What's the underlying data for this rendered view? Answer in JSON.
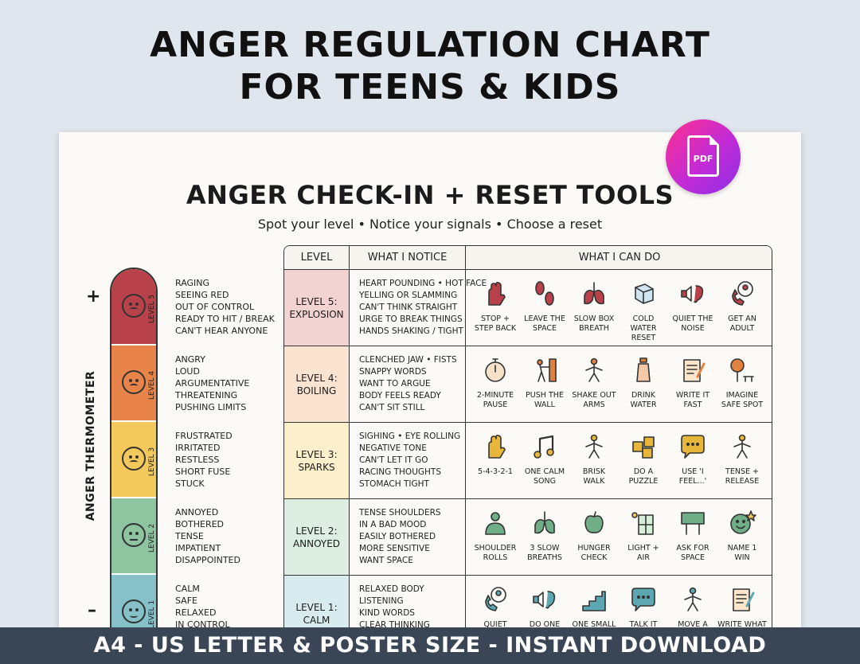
{
  "hero": {
    "line1": "ANGER REGULATION CHART",
    "line2": "FOR TEENS & KIDS"
  },
  "badge": {
    "text": "PDF"
  },
  "sheet": {
    "title": "ANGER CHECK-IN + RESET TOOLS",
    "subtitle": "Spot your level • Notice your signals • Choose a reset"
  },
  "thermometer": {
    "label": "ANGER THERMOMETER",
    "plus": "+",
    "minus": "–",
    "levels": [
      {
        "tag": "LEVEL 5",
        "color": "#b8414a",
        "signals": [
          "RAGING",
          "SEEING RED",
          "OUT OF CONTROL",
          "READY TO HIT / BREAK",
          "CAN'T HEAR ANYONE"
        ]
      },
      {
        "tag": "LEVEL 4",
        "color": "#e8844a",
        "signals": [
          "ANGRY",
          "LOUD",
          "ARGUMENTATIVE",
          "THREATENING",
          "PUSHING LIMITS"
        ]
      },
      {
        "tag": "LEVEL 3",
        "color": "#f2c95a",
        "signals": [
          "FRUSTRATED",
          "IRRITATED",
          "RESTLESS",
          "SHORT FUSE",
          "STUCK"
        ]
      },
      {
        "tag": "LEVEL 2",
        "color": "#8fc4a0",
        "signals": [
          "ANNOYED",
          "BOTHERED",
          "TENSE",
          "IMPATIENT",
          "DISAPPOINTED"
        ]
      },
      {
        "tag": "LEVEL 1",
        "color": "#86c0c9",
        "signals": [
          "CALM",
          "SAFE",
          "RELAXED",
          "IN CONTROL"
        ]
      }
    ]
  },
  "table": {
    "headers": {
      "level": "LEVEL",
      "notice": "WHAT I NOTICE",
      "do": "WHAT I CAN DO"
    },
    "rows": [
      {
        "level": "LEVEL 5:\nEXPLOSION",
        "bg": "#f2d3d2",
        "stripe": "#b8414a",
        "notice": [
          "HEART POUNDING • HOT FACE",
          "YELLING OR SLAMMING",
          "CAN'T THINK STRAIGHT",
          "URGE TO BREAK THINGS",
          "HANDS SHAKING / TIGHT"
        ],
        "tools": [
          {
            "icon": "stop-hand-icon",
            "label": "STOP +\nSTEP BACK"
          },
          {
            "icon": "footprints-icon",
            "label": "LEAVE THE\nSPACE"
          },
          {
            "icon": "lungs-icon",
            "label": "SLOW BOX\nBREATH"
          },
          {
            "icon": "ice-cube-icon",
            "label": "COLD WATER\nRESET"
          },
          {
            "icon": "ear-icon",
            "label": "QUIET THE\nNOISE"
          },
          {
            "icon": "phone-adult-icon",
            "label": "GET AN\nADULT"
          }
        ]
      },
      {
        "level": "LEVEL 4:\nBOILING",
        "bg": "#fbe3d2",
        "stripe": "#e8844a",
        "notice": [
          "CLENCHED JAW • FISTS",
          "SNAPPY WORDS",
          "WANT TO ARGUE",
          "BODY FEELS READY",
          "CAN'T SIT STILL"
        ],
        "tools": [
          {
            "icon": "stopwatch-icon",
            "label": "2-MINUTE\nPAUSE"
          },
          {
            "icon": "push-wall-icon",
            "label": "PUSH THE\nWALL"
          },
          {
            "icon": "shake-arms-icon",
            "label": "SHAKE OUT\nARMS"
          },
          {
            "icon": "water-bottle-icon",
            "label": "DRINK\nWATER"
          },
          {
            "icon": "notepad-icon",
            "label": "WRITE IT\nFAST"
          },
          {
            "icon": "tree-bench-icon",
            "label": "IMAGINE\nSAFE SPOT"
          }
        ]
      },
      {
        "level": "LEVEL 3:\nSPARKS",
        "bg": "#fcefcc",
        "stripe": "#f2c95a",
        "notice": [
          "SIGHING • EYE ROLLING",
          "NEGATIVE TONE",
          "CAN'T LET IT GO",
          "RACING THOUGHTS",
          "STOMACH TIGHT"
        ],
        "tools": [
          {
            "icon": "hand-icon",
            "label": "5-4-3-2-1"
          },
          {
            "icon": "music-note-icon",
            "label": "ONE CALM\nSONG"
          },
          {
            "icon": "walking-icon",
            "label": "BRISK\nWALK"
          },
          {
            "icon": "puzzle-icon",
            "label": "DO A\nPUZZLE"
          },
          {
            "icon": "speech-bubble-icon",
            "label": "USE 'I\nFEEL...'"
          },
          {
            "icon": "flexed-arm-icon",
            "label": "TENSE +\nRELEASE"
          }
        ]
      },
      {
        "level": "LEVEL 2:\nANNOYED",
        "bg": "#dcefe2",
        "stripe": "#8fc4a0",
        "notice": [
          "TENSE SHOULDERS",
          "IN A BAD MOOD",
          "EASILY BOTHERED",
          "MORE SENSITIVE",
          "WANT SPACE"
        ],
        "tools": [
          {
            "icon": "shoulder-roll-icon",
            "label": "SHOULDER\nROLLS"
          },
          {
            "icon": "lungs-breath-icon",
            "label": "3 SLOW\nBREATHS"
          },
          {
            "icon": "apple-icon",
            "label": "HUNGER\nCHECK"
          },
          {
            "icon": "window-sun-icon",
            "label": "LIGHT +\nAIR"
          },
          {
            "icon": "boundaries-sign-icon",
            "label": "ASK FOR\nSPACE"
          },
          {
            "icon": "smiley-star-icon",
            "label": "NAME 1\nWIN"
          }
        ]
      },
      {
        "level": "LEVEL 1:\nCALM",
        "bg": "#d8ecf0",
        "stripe": "#86c0c9",
        "notice": [
          "RELAXED BODY",
          "LISTENING",
          "KIND WORDS",
          "CLEAR THINKING"
        ],
        "tools": [
          {
            "icon": "headphones-book-icon",
            "label": "QUIET"
          },
          {
            "icon": "heart-hands-icon",
            "label": "DO ONE"
          },
          {
            "icon": "stairs-icon",
            "label": "ONE SMALL"
          },
          {
            "icon": "chat-icon",
            "label": "TALK IT"
          },
          {
            "icon": "running-icon",
            "label": "MOVE A"
          },
          {
            "icon": "journal-icon",
            "label": "WRITE WHAT"
          }
        ]
      }
    ]
  },
  "colors": {
    "accent_red": "#b8414a",
    "accent_teal": "#4f9aa4",
    "accent_gold": "#e0a63a"
  },
  "banner": {
    "text": "A4 - US LETTER & POSTER SIZE - INSTANT DOWNLOAD"
  }
}
